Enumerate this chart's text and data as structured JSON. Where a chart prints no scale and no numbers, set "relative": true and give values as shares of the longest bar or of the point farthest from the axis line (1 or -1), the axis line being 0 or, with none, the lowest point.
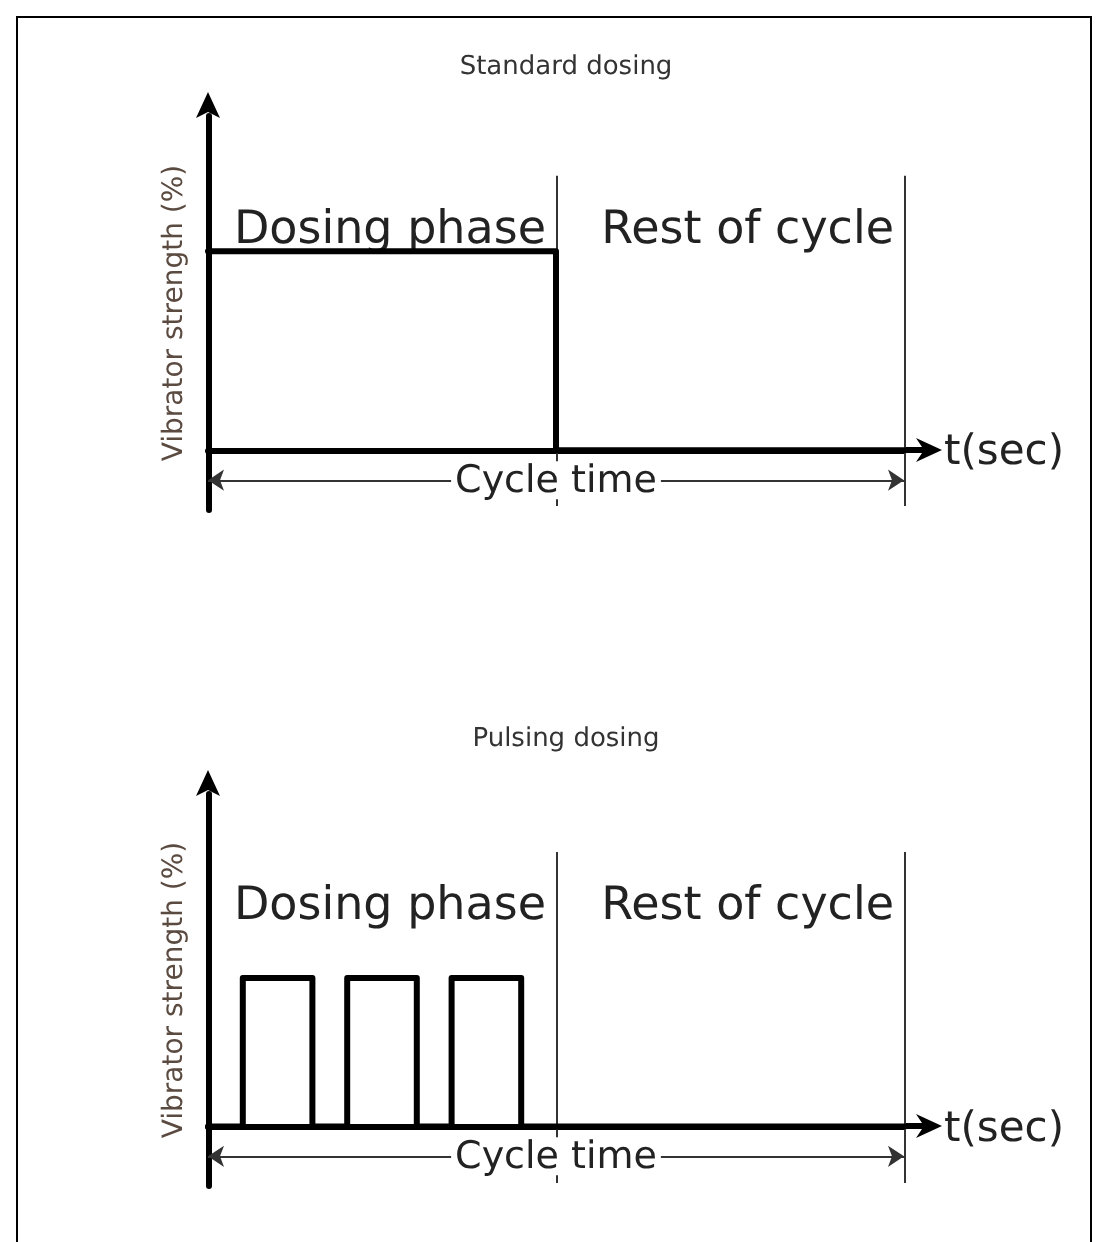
{
  "chart_data": [
    {
      "type": "step",
      "title": "Standard dosing",
      "xlabel": "t(sec)",
      "ylabel": "Vibrator strength (%)",
      "relative": true,
      "categories": [
        null,
        null,
        null,
        null,
        null,
        null,
        null,
        null,
        null,
        null,
        null,
        null,
        null,
        null,
        null,
        null,
        null,
        null,
        null,
        null,
        null
      ],
      "values": [
        1,
        1,
        1,
        1,
        1,
        1,
        1,
        1,
        1,
        1,
        0,
        0,
        0,
        0,
        0,
        0,
        0,
        0,
        0,
        0,
        0
      ],
      "color": "#000000",
      "annotations": [
        "Dosing phase",
        "Rest of cycle",
        "Cycle time"
      ]
    },
    {
      "type": "step",
      "title": "Pulsing dosing",
      "xlabel": "t(sec)",
      "ylabel": "Vibrator strength (%)",
      "relative": true,
      "categories": [
        null,
        null,
        null,
        null,
        null,
        null,
        null,
        null,
        null,
        null,
        null,
        null,
        null,
        null,
        null,
        null,
        null,
        null,
        null,
        null,
        null
      ],
      "values": [
        0,
        1,
        1,
        0,
        1,
        1,
        0,
        1,
        1,
        0,
        0,
        0,
        0,
        0,
        0,
        0,
        0,
        0,
        0,
        0,
        0
      ],
      "color": "#000000",
      "annotations": [
        "Dosing phase",
        "Rest of cycle",
        "Cycle time"
      ]
    }
  ]
}
